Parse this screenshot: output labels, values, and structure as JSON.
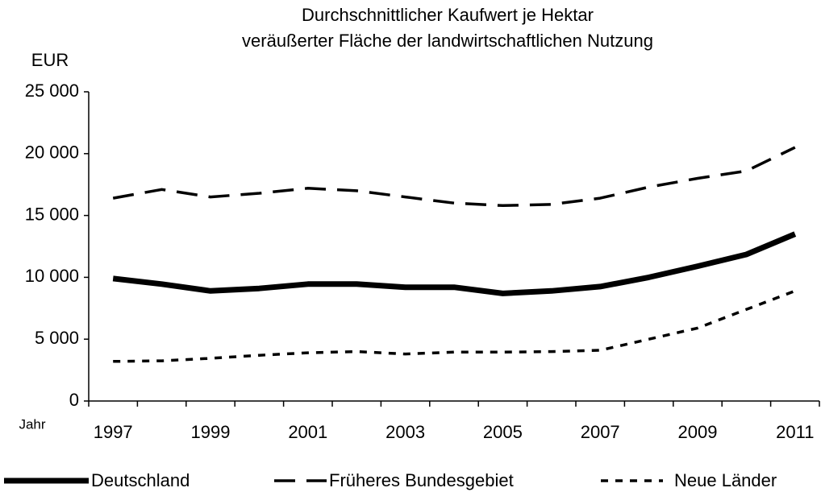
{
  "chart_data": {
    "type": "line",
    "title": [
      "Durchschnittlicher Kaufwert je Hektar",
      "veräußerter Fläche der landwirtschaftlichen Nutzung"
    ],
    "y_label": "EUR",
    "x_label": "Jahr",
    "categories": [
      "1997",
      null,
      "1999",
      null,
      "2001",
      null,
      "2003",
      null,
      "2005",
      null,
      "2007",
      null,
      "2009",
      null,
      "2011"
    ],
    "series": [
      {
        "name": "Deutschland",
        "color": "#000000",
        "style": "solid",
        "values": [
          9900,
          9450,
          8900,
          9100,
          9450,
          9450,
          9200,
          9200,
          8700,
          8900,
          9250,
          10000,
          10900,
          11850,
          13500
        ]
      },
      {
        "name": "Früheres Bundesgebiet",
        "color": "#000000",
        "style": "dashed",
        "values": [
          16400,
          17100,
          16500,
          16800,
          17200,
          17000,
          16500,
          16000,
          15800,
          15900,
          16400,
          17300,
          18000,
          18600,
          20500
        ]
      },
      {
        "name": "Neue Länder",
        "color": "#000000",
        "style": "dotted",
        "values": [
          3200,
          3250,
          3450,
          3700,
          3900,
          4000,
          3800,
          3950,
          3950,
          4000,
          4100,
          5000,
          5900,
          7400,
          8900
        ]
      }
    ],
    "ylim": [
      0,
      25000
    ],
    "yticks": [
      0,
      {
        "value": 5000,
        "label": "5 000"
      },
      {
        "value": 10000,
        "label": "10 000"
      },
      {
        "value": 15000,
        "label": "15 000"
      },
      {
        "value": 20000,
        "label": "20 000"
      },
      {
        "value": 25000,
        "label": "25 000"
      }
    ],
    "grid": false,
    "legend": "bottom"
  }
}
